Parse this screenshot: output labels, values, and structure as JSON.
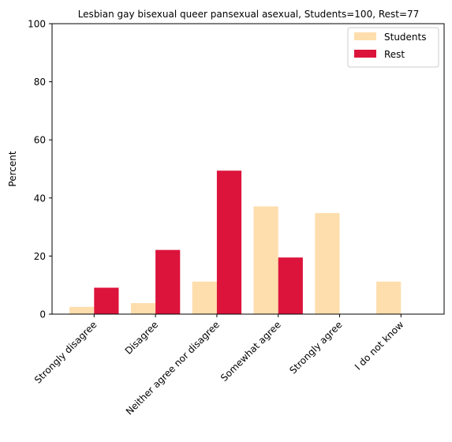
{
  "chart_data": {
    "type": "bar",
    "title": "Lesbian gay bisexual queer pansexual asexual, Students=100, Rest=77",
    "xlabel": "",
    "ylabel": "Percent",
    "ylim": [
      0,
      100
    ],
    "yticks": [
      "0",
      "20",
      "40",
      "60",
      "80",
      "100"
    ],
    "grid": false,
    "legend_position": "top-right",
    "categories": [
      "Strongly disagree",
      "Disagree",
      "Neither agree nor disagree",
      "Somewhat agree",
      "Strongly agree",
      "I do not know"
    ],
    "series": [
      {
        "name": "Students",
        "color": "#ffdead",
        "values": [
          2.5,
          3.8,
          11.2,
          37.1,
          34.8,
          11.2
        ]
      },
      {
        "name": "Rest",
        "color": "#dc143c",
        "values": [
          9.1,
          22.1,
          49.4,
          19.5,
          0,
          0
        ]
      }
    ]
  }
}
